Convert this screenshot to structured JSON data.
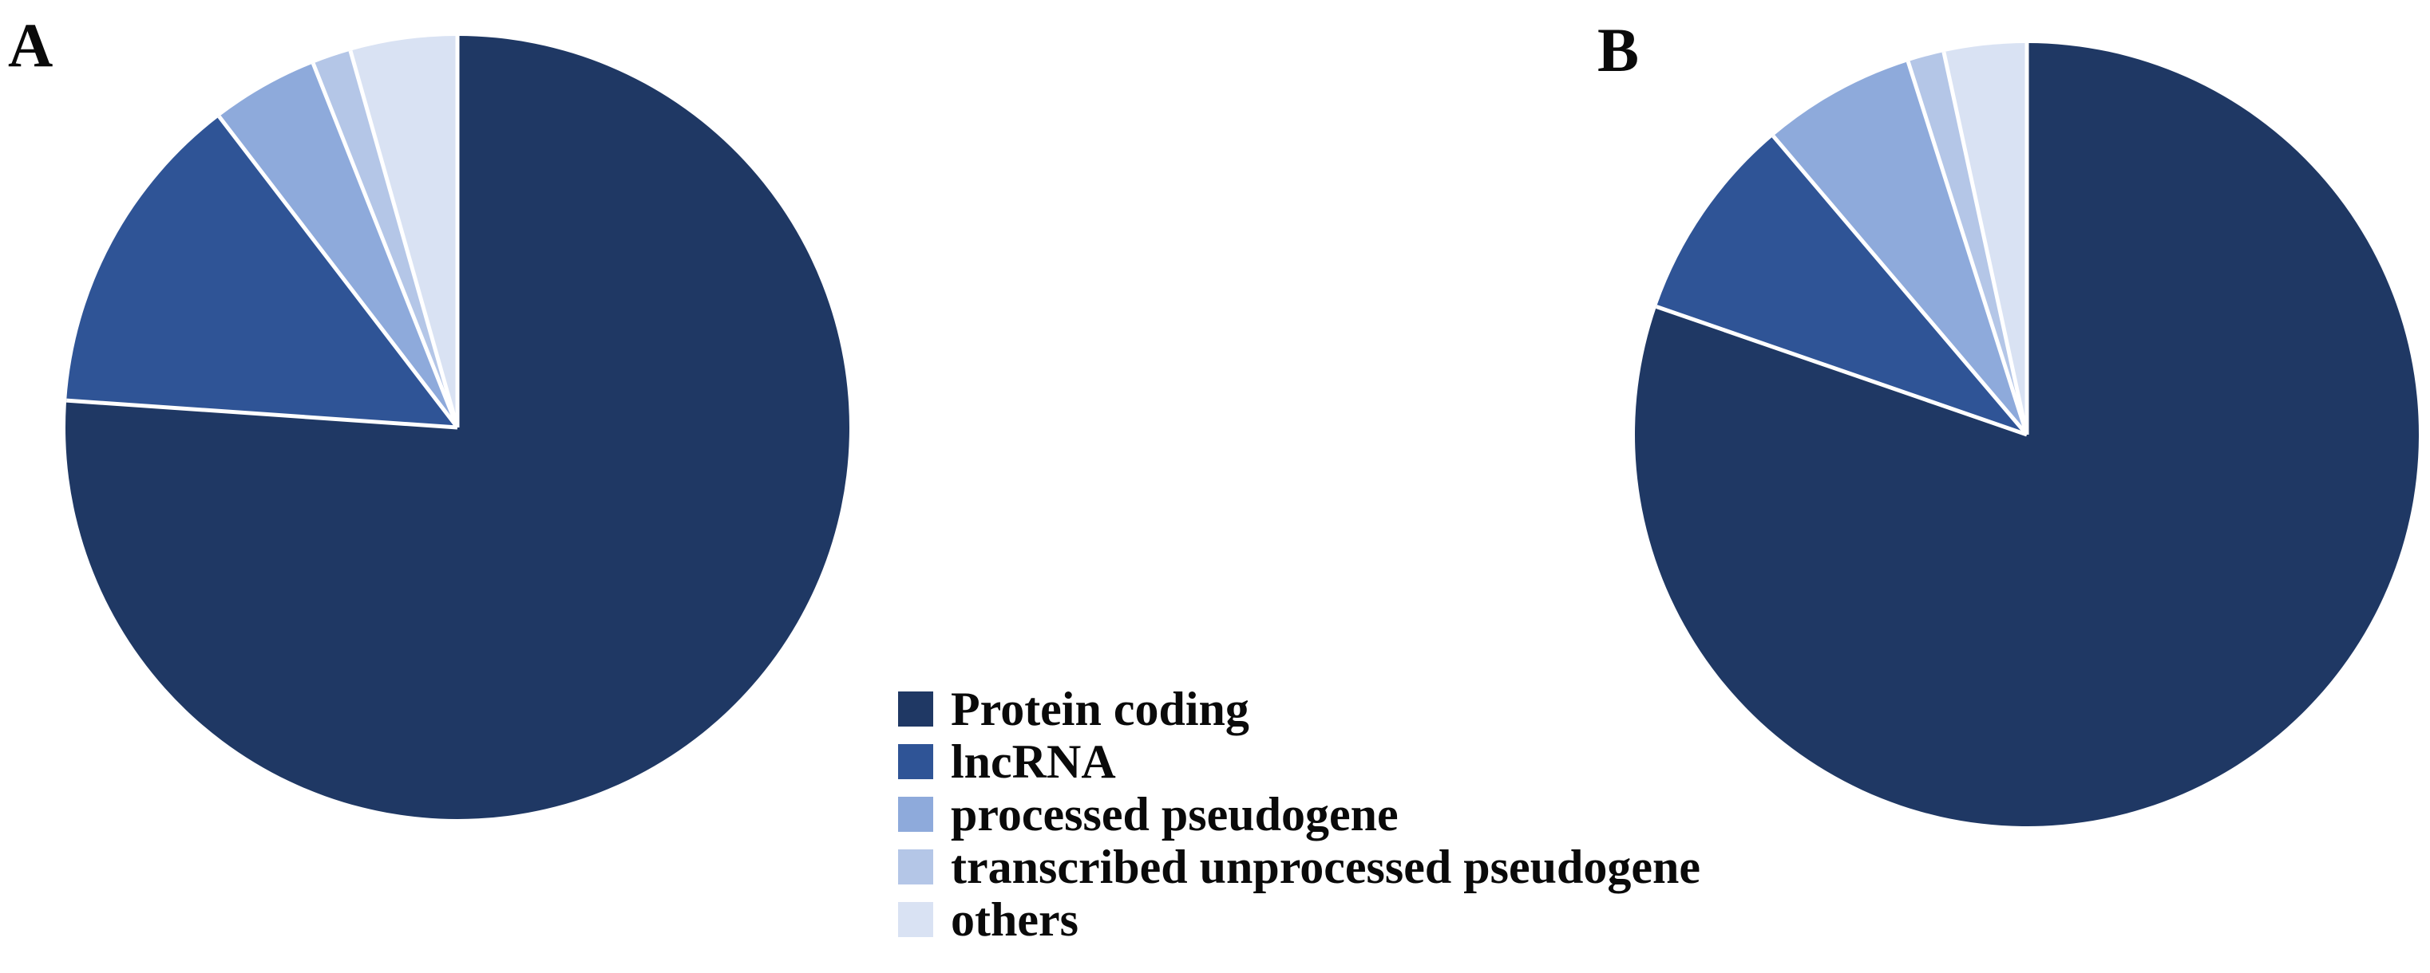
{
  "panels": [
    {
      "label": "A"
    },
    {
      "label": "B"
    }
  ],
  "legend": {
    "items": [
      {
        "label": "Protein coding",
        "color": "#1F3864"
      },
      {
        "label": "lncRNA",
        "color": "#2F5496"
      },
      {
        "label": "processed pseudogene",
        "color": "#8EAADB"
      },
      {
        "label": "transcribed unprocessed pseudogene",
        "color": "#B4C6E7"
      },
      {
        "label": "others",
        "color": "#D9E2F3"
      }
    ]
  },
  "chart_data": [
    {
      "type": "pie",
      "panel": "A",
      "categories": [
        "Protein coding",
        "lncRNA",
        "processed pseudogene",
        "transcribed unprocessed pseudogene",
        "others"
      ],
      "values": [
        76.1,
        13.5,
        4.4,
        1.6,
        4.4
      ],
      "unit": "percent_of_total",
      "colors": [
        "#1F3864",
        "#2F5496",
        "#8EAADB",
        "#B4C6E7",
        "#D9E2F3"
      ],
      "start_angle_deg": 0,
      "direction": "clockwise",
      "slice_border_color": "#FFFFFF",
      "data_labels": "none",
      "legend_position": "shared-bottom-center"
    },
    {
      "type": "pie",
      "panel": "B",
      "categories": [
        "Protein coding",
        "lncRNA",
        "processed pseudogene",
        "transcribed unprocessed pseudogene",
        "others"
      ],
      "values": [
        80.3,
        8.5,
        6.3,
        1.5,
        3.4
      ],
      "unit": "percent_of_total",
      "colors": [
        "#1F3864",
        "#2F5496",
        "#8EAADB",
        "#B4C6E7",
        "#D9E2F3"
      ],
      "start_angle_deg": 0,
      "direction": "clockwise",
      "slice_border_color": "#FFFFFF",
      "data_labels": "none",
      "legend_position": "shared-bottom-center"
    }
  ]
}
